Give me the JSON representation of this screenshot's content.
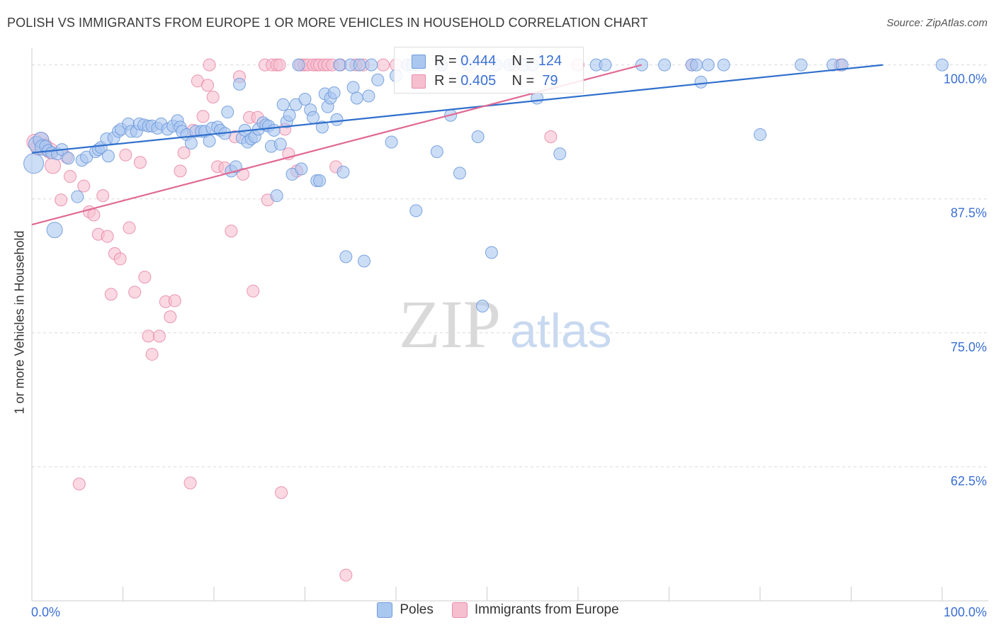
{
  "title": "POLISH VS IMMIGRANTS FROM EUROPE 1 OR MORE VEHICLES IN HOUSEHOLD CORRELATION CHART",
  "source": "Source: ZipAtlas.com",
  "watermark": {
    "zip": "ZIP",
    "atlas": "atlas"
  },
  "stats": {
    "series1": {
      "r_label": "R =",
      "r_value": "0.444",
      "n_label": "N =",
      "n_value": "124"
    },
    "series2": {
      "r_label": "R =",
      "r_value": "0.405",
      "n_label": "N =",
      "n_value": " 79"
    }
  },
  "legend": {
    "series1": "Poles",
    "series2": "Immigrants from Europe"
  },
  "colors": {
    "blue_fill": "#aac7f0",
    "blue_stroke": "#6f9bdc",
    "blue_line": "#2f6fcc",
    "pink_fill": "#f6bfd0",
    "pink_stroke": "#e98aaa",
    "pink_line": "#e06a94",
    "axis_text": "#3b6fd4",
    "grid": "#d9d9d9"
  },
  "chart_data": {
    "type": "scatter",
    "title": "POLISH VS IMMIGRANTS FROM EUROPE 1 OR MORE VEHICLES IN HOUSEHOLD CORRELATION CHART",
    "xlabel": "",
    "ylabel": "1 or more Vehicles in Household",
    "xlim": [
      0,
      100
    ],
    "ylim": [
      50,
      100.9
    ],
    "x_tick_labels": [
      "0.0%",
      "100.0%"
    ],
    "y_ticks": [
      100,
      87.5,
      75,
      62.5
    ],
    "y_tick_labels": [
      "100.0%",
      "87.5%",
      "75.0%",
      "62.5%"
    ],
    "grid": "horizontal dashed",
    "series": [
      {
        "name": "Poles",
        "trend": {
          "x": [
            0,
            93.5
          ],
          "y": [
            91.8,
            100.0
          ]
        },
        "points": [
          [
            0.2,
            90.8,
            3
          ],
          [
            0.5,
            92.6,
            2
          ],
          [
            1.0,
            93.0,
            2
          ],
          [
            1.2,
            92.3,
            2
          ],
          [
            1.5,
            92.4,
            1
          ],
          [
            1.8,
            92.0,
            1
          ],
          [
            2.2,
            91.8,
            1
          ],
          [
            2.5,
            84.6,
            2
          ],
          [
            2.8,
            91.7,
            1
          ],
          [
            3.3,
            92.1,
            1
          ],
          [
            4.0,
            91.3,
            1
          ],
          [
            5.0,
            87.7,
            1
          ],
          [
            5.5,
            91.1,
            1
          ],
          [
            6.0,
            91.4,
            1
          ],
          [
            7.0,
            91.9,
            1
          ],
          [
            7.3,
            92.1,
            1
          ],
          [
            7.6,
            92.3,
            1
          ],
          [
            8.2,
            93.1,
            1
          ],
          [
            8.4,
            91.5,
            1
          ],
          [
            9.0,
            93.2,
            1
          ],
          [
            9.5,
            93.8,
            1
          ],
          [
            9.8,
            94.0,
            1
          ],
          [
            10.6,
            94.5,
            1
          ],
          [
            10.9,
            93.8,
            1
          ],
          [
            11.5,
            93.8,
            1
          ],
          [
            11.8,
            94.5,
            1
          ],
          [
            12.3,
            94.4,
            1
          ],
          [
            12.8,
            94.3,
            1
          ],
          [
            13.2,
            94.3,
            1
          ],
          [
            13.8,
            94.1,
            1
          ],
          [
            14.2,
            94.5,
            1
          ],
          [
            14.9,
            94.0,
            1
          ],
          [
            15.5,
            94.3,
            1
          ],
          [
            16.0,
            94.8,
            1
          ],
          [
            16.3,
            94.2,
            1
          ],
          [
            16.5,
            93.8,
            1
          ],
          [
            17.0,
            93.5,
            1
          ],
          [
            17.5,
            92.7,
            1
          ],
          [
            18.0,
            93.8,
            1
          ],
          [
            18.6,
            93.8,
            1
          ],
          [
            19.0,
            93.8,
            1
          ],
          [
            19.5,
            92.9,
            1
          ],
          [
            19.8,
            94.1,
            1
          ],
          [
            20.4,
            94.2,
            1
          ],
          [
            20.7,
            93.9,
            1
          ],
          [
            21.2,
            93.6,
            1
          ],
          [
            21.5,
            95.6,
            1
          ],
          [
            21.9,
            90.1,
            1
          ],
          [
            22.4,
            90.5,
            1
          ],
          [
            22.8,
            98.2,
            1
          ],
          [
            23.1,
            93.2,
            1
          ],
          [
            23.4,
            93.9,
            1
          ],
          [
            23.7,
            92.8,
            1
          ],
          [
            24.1,
            93.1,
            1
          ],
          [
            24.5,
            93.3,
            1
          ],
          [
            24.9,
            94.0,
            1
          ],
          [
            25.4,
            94.6,
            1
          ],
          [
            25.7,
            94.4,
            1
          ],
          [
            26.0,
            94.3,
            1
          ],
          [
            26.3,
            92.4,
            1
          ],
          [
            26.6,
            93.9,
            1
          ],
          [
            26.9,
            87.8,
            1
          ],
          [
            27.3,
            92.6,
            1
          ],
          [
            27.6,
            96.3,
            1
          ],
          [
            28.0,
            94.7,
            1
          ],
          [
            28.3,
            95.3,
            1
          ],
          [
            28.6,
            89.8,
            1
          ],
          [
            29.0,
            96.3,
            1
          ],
          [
            29.3,
            100.0,
            1
          ],
          [
            29.6,
            90.3,
            1
          ],
          [
            30.0,
            96.8,
            1
          ],
          [
            30.6,
            95.8,
            1
          ],
          [
            30.9,
            95.1,
            1
          ],
          [
            31.3,
            89.2,
            1
          ],
          [
            31.6,
            89.2,
            1
          ],
          [
            31.9,
            94.2,
            1
          ],
          [
            32.2,
            97.3,
            1
          ],
          [
            32.5,
            96.1,
            1
          ],
          [
            32.8,
            96.9,
            1
          ],
          [
            33.2,
            97.4,
            1
          ],
          [
            33.5,
            94.9,
            1
          ],
          [
            33.8,
            100.0,
            1
          ],
          [
            34.2,
            90.0,
            1
          ],
          [
            34.5,
            82.1,
            1
          ],
          [
            35.0,
            100.0,
            1
          ],
          [
            35.3,
            97.9,
            1
          ],
          [
            35.7,
            96.9,
            1
          ],
          [
            36.0,
            100.0,
            1
          ],
          [
            36.5,
            81.7,
            1
          ],
          [
            37.0,
            97.1,
            1
          ],
          [
            37.3,
            100.0,
            1
          ],
          [
            38.0,
            98.6,
            1
          ],
          [
            39.5,
            92.8,
            1
          ],
          [
            40.0,
            99.0,
            1
          ],
          [
            41.3,
            100.0,
            1
          ],
          [
            41.8,
            100.0,
            1
          ],
          [
            42.2,
            86.4,
            1
          ],
          [
            42.5,
            100.0,
            1
          ],
          [
            44.5,
            91.9,
            1
          ],
          [
            45.0,
            100.0,
            1
          ],
          [
            46.0,
            95.3,
            1
          ],
          [
            47.0,
            89.9,
            1
          ],
          [
            48.0,
            100.0,
            1
          ],
          [
            49.0,
            93.3,
            1
          ],
          [
            49.5,
            77.5,
            1
          ],
          [
            50.5,
            82.5,
            1
          ],
          [
            51.0,
            100.0,
            1
          ],
          [
            52.5,
            100.0,
            1
          ],
          [
            54.0,
            100.0,
            1
          ],
          [
            55.0,
            100.0,
            1
          ],
          [
            55.5,
            96.9,
            1
          ],
          [
            58.0,
            91.7,
            1
          ],
          [
            62.0,
            100.0,
            1
          ],
          [
            63.0,
            100.0,
            1
          ],
          [
            67.0,
            100.0,
            1
          ],
          [
            69.5,
            100.0,
            1
          ],
          [
            72.5,
            100.0,
            1
          ],
          [
            73.0,
            100.0,
            1
          ],
          [
            73.5,
            98.4,
            1
          ],
          [
            74.3,
            100.0,
            1
          ],
          [
            76.0,
            100.0,
            1
          ],
          [
            80.0,
            93.5,
            1
          ],
          [
            84.5,
            100.0,
            1
          ],
          [
            88.0,
            100.0,
            1
          ],
          [
            89.0,
            100.0,
            1
          ],
          [
            100.0,
            100.0,
            1
          ]
        ]
      },
      {
        "name": "Immigrants from Europe",
        "trend": {
          "x": [
            0,
            67.0
          ],
          "y": [
            85.1,
            100.0
          ]
        },
        "points": [
          [
            0.3,
            92.8,
            2
          ],
          [
            0.7,
            92.3,
            2
          ],
          [
            1.0,
            93.0,
            2
          ],
          [
            1.4,
            92.4,
            2
          ],
          [
            2.0,
            92.0,
            2
          ],
          [
            2.3,
            90.6,
            2
          ],
          [
            3.2,
            87.4,
            1
          ],
          [
            3.8,
            91.4,
            1
          ],
          [
            4.2,
            89.6,
            1
          ],
          [
            5.2,
            60.9,
            1
          ],
          [
            5.7,
            88.7,
            1
          ],
          [
            6.3,
            86.3,
            1
          ],
          [
            6.8,
            86.0,
            1
          ],
          [
            7.3,
            84.2,
            1
          ],
          [
            7.8,
            87.8,
            1
          ],
          [
            8.3,
            84.0,
            1
          ],
          [
            8.7,
            78.6,
            1
          ],
          [
            9.1,
            82.4,
            1
          ],
          [
            9.7,
            81.9,
            1
          ],
          [
            10.3,
            91.6,
            1
          ],
          [
            10.7,
            84.8,
            1
          ],
          [
            11.3,
            78.8,
            1
          ],
          [
            11.9,
            90.9,
            1
          ],
          [
            12.4,
            80.2,
            1
          ],
          [
            12.8,
            74.7,
            1
          ],
          [
            13.2,
            73.0,
            1
          ],
          [
            14.0,
            74.7,
            1
          ],
          [
            14.7,
            77.9,
            1
          ],
          [
            15.2,
            76.5,
            1
          ],
          [
            15.7,
            78.0,
            1
          ],
          [
            16.3,
            90.1,
            1
          ],
          [
            16.7,
            91.8,
            1
          ],
          [
            17.4,
            61.0,
            1
          ],
          [
            17.7,
            93.9,
            1
          ],
          [
            18.2,
            98.5,
            1
          ],
          [
            18.8,
            95.2,
            1
          ],
          [
            19.3,
            98.1,
            1
          ],
          [
            19.5,
            100.0,
            1
          ],
          [
            19.9,
            97.0,
            1
          ],
          [
            20.4,
            90.5,
            1
          ],
          [
            21.2,
            90.4,
            1
          ],
          [
            21.9,
            84.5,
            1
          ],
          [
            22.3,
            93.3,
            1
          ],
          [
            22.8,
            98.9,
            1
          ],
          [
            23.2,
            89.8,
            1
          ],
          [
            23.9,
            95.1,
            1
          ],
          [
            24.3,
            78.9,
            1
          ],
          [
            24.8,
            95.1,
            1
          ],
          [
            25.6,
            100.0,
            1
          ],
          [
            25.9,
            87.4,
            1
          ],
          [
            26.4,
            100.0,
            1
          ],
          [
            26.9,
            100.0,
            1
          ],
          [
            27.2,
            100.0,
            1
          ],
          [
            27.4,
            60.1,
            1
          ],
          [
            27.8,
            94.0,
            1
          ],
          [
            28.2,
            91.7,
            1
          ],
          [
            29.1,
            90.1,
            1
          ],
          [
            29.5,
            100.0,
            1
          ],
          [
            29.9,
            100.0,
            1
          ],
          [
            30.3,
            100.0,
            1
          ],
          [
            30.9,
            100.0,
            1
          ],
          [
            31.3,
            100.0,
            1
          ],
          [
            31.6,
            100.0,
            1
          ],
          [
            32.1,
            100.0,
            1
          ],
          [
            32.5,
            100.0,
            1
          ],
          [
            33.0,
            100.0,
            1
          ],
          [
            33.4,
            90.5,
            1
          ],
          [
            33.9,
            100.0,
            1
          ],
          [
            34.5,
            52.4,
            1
          ],
          [
            35.6,
            100.0,
            1
          ],
          [
            36.4,
            100.0,
            1
          ],
          [
            38.6,
            100.0,
            1
          ],
          [
            40.0,
            100.0,
            1
          ],
          [
            45.0,
            100.0,
            1
          ],
          [
            53.0,
            100.0,
            1
          ],
          [
            57.0,
            93.3,
            1
          ],
          [
            60.0,
            100.0,
            1
          ],
          [
            72.5,
            100.0,
            1
          ],
          [
            88.8,
            100.0,
            1
          ]
        ]
      }
    ]
  }
}
